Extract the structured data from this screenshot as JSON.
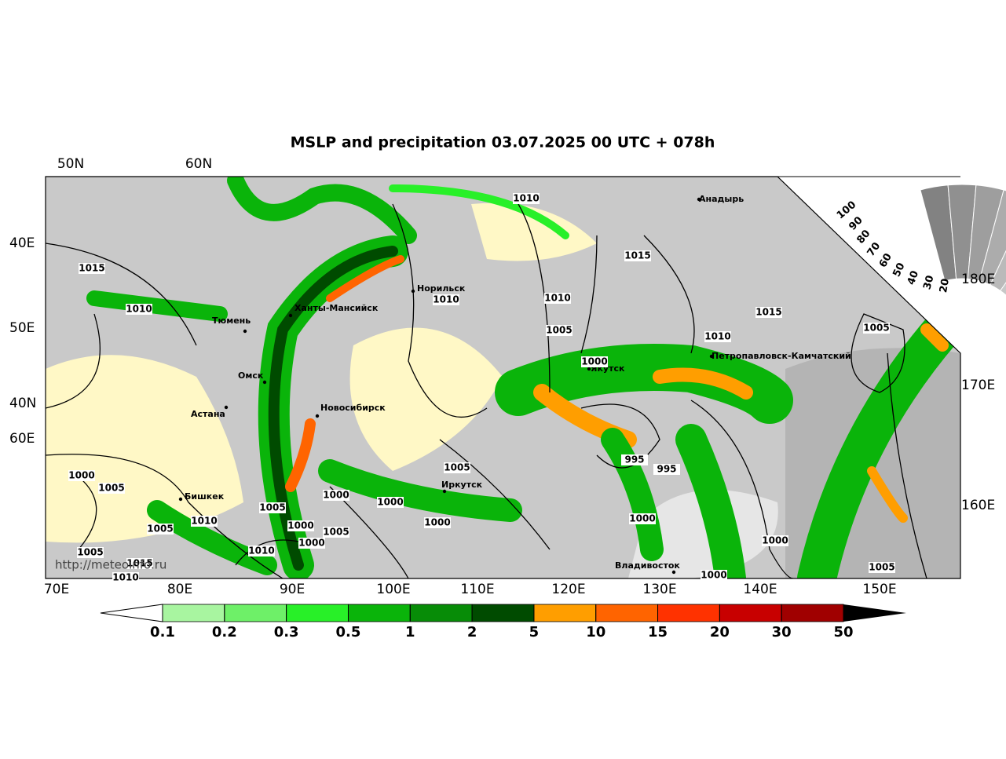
{
  "title": "MSLP and precipitation 03.07.2025 00 UTC + 078h",
  "watermark": "http://meteoinfo.ru",
  "lat_labels_top": [
    "50N",
    "60N"
  ],
  "lat_labels_left": [
    "40E",
    "50E",
    "40N",
    "60E"
  ],
  "lat_labels_right": [
    "180E",
    "170E",
    "160E"
  ],
  "lon_labels_bottom": [
    "70E",
    "80E",
    "90E",
    "100E",
    "110E",
    "120E",
    "130E",
    "140E",
    "150E"
  ],
  "cities": [
    "Анадырь",
    "Норильск",
    "Ханты-Мансийск",
    "Тюмень",
    "Омск",
    "Астана",
    "Новосибирск",
    "Петропавловск-Камчатский",
    "Якутск",
    "Иркутск",
    "Бишкек",
    "Владивосток"
  ],
  "isobar_labels": [
    "1010",
    "1015",
    "1010",
    "1015",
    "1010",
    "1010",
    "1005",
    "1010",
    "1015",
    "1005",
    "1000",
    "995",
    "995",
    "1005",
    "1000",
    "1005",
    "1000",
    "1000",
    "1005",
    "1000",
    "1000",
    "1010",
    "1000",
    "1005",
    "1005",
    "1000",
    "1000",
    "1010",
    "1005",
    "1005",
    "1000",
    "1010",
    "1015"
  ],
  "colorbar": {
    "ticks": [
      0.1,
      0.2,
      0.3,
      0.5,
      1,
      2,
      5,
      10,
      15,
      20,
      30,
      50
    ],
    "colors": [
      "#a8f5a0",
      "#6ef068",
      "#28f028",
      "#0ab40a",
      "#078c07",
      "#004b00",
      "#ff9e00",
      "#ff6400",
      "#ff3200",
      "#c80000",
      "#a00000"
    ],
    "under_color": "#ffffff",
    "over_color": "#000000"
  },
  "cloud_scale": [
    100,
    90,
    80,
    70,
    60,
    50,
    40,
    30,
    20
  ]
}
